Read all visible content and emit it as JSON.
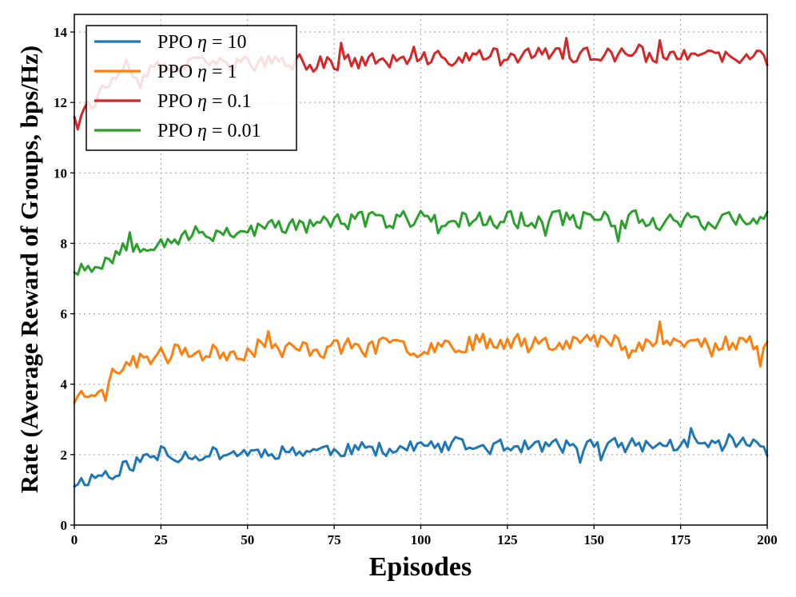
{
  "chart_data": {
    "type": "line",
    "title": "",
    "xlabel": "Episodes",
    "ylabel": "Rate (Average Reward of Groups, bps/Hz)",
    "xlim": [
      0,
      200
    ],
    "ylim": [
      0,
      14.5
    ],
    "xticks": [
      0,
      25,
      50,
      75,
      100,
      125,
      150,
      175,
      200
    ],
    "yticks": [
      0,
      2,
      4,
      6,
      8,
      10,
      12,
      14
    ],
    "grid": true,
    "legend_position": "top-left",
    "series": [
      {
        "name": "PPO η = 10",
        "prefix": "PPO",
        "eta_symbol": "η",
        "eta_value": "= 10",
        "color": "#1f77b4",
        "trend": [
          [
            0,
            1.2
          ],
          [
            10,
            1.5
          ],
          [
            20,
            1.9
          ],
          [
            30,
            2.0
          ],
          [
            60,
            2.1
          ],
          [
            100,
            2.2
          ],
          [
            200,
            2.3
          ]
        ],
        "amplitude": 0.2,
        "seed": 11
      },
      {
        "name": "PPO η = 1",
        "prefix": "PPO",
        "eta_symbol": "η",
        "eta_value": "= 1",
        "color": "#ff7f0e",
        "trend": [
          [
            0,
            3.6
          ],
          [
            8,
            4.0
          ],
          [
            15,
            4.6
          ],
          [
            25,
            4.8
          ],
          [
            50,
            4.95
          ],
          [
            100,
            5.1
          ],
          [
            125,
            5.25
          ],
          [
            200,
            5.15
          ]
        ],
        "amplitude": 0.25,
        "seed": 23
      },
      {
        "name": "PPO η = 0.1",
        "prefix": "PPO",
        "eta_symbol": "η",
        "eta_value": "= 0.1",
        "color": "#d62728",
        "trend": [
          [
            0,
            11.7
          ],
          [
            5,
            12.0
          ],
          [
            10,
            12.5
          ],
          [
            20,
            12.9
          ],
          [
            40,
            13.1
          ],
          [
            100,
            13.2
          ],
          [
            125,
            13.35
          ],
          [
            200,
            13.25
          ]
        ],
        "amplitude": 0.22,
        "seed": 37
      },
      {
        "name": "PPO η = 0.01",
        "prefix": "PPO",
        "eta_symbol": "η",
        "eta_value": "= 0.01",
        "color": "#2ca02c",
        "trend": [
          [
            0,
            7.3
          ],
          [
            8,
            7.5
          ],
          [
            15,
            7.9
          ],
          [
            25,
            8.1
          ],
          [
            40,
            8.3
          ],
          [
            75,
            8.6
          ],
          [
            100,
            8.7
          ],
          [
            200,
            8.65
          ]
        ],
        "amplitude": 0.25,
        "seed": 53
      }
    ]
  }
}
